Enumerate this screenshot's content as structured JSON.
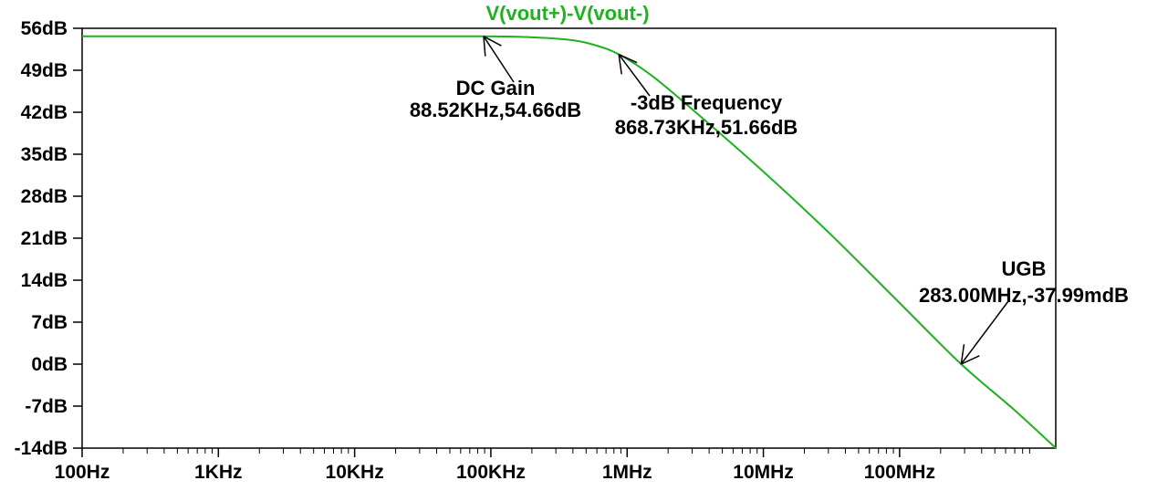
{
  "chart_data": {
    "type": "line",
    "title": "V(vout+)-V(vout-)",
    "xlabel": "",
    "ylabel": "",
    "x_scale": "log",
    "xlim": [
      100,
      1400000000
    ],
    "ylim": [
      -14,
      56
    ],
    "x_ticks": [
      {
        "value": 100,
        "label": "100Hz"
      },
      {
        "value": 1000,
        "label": "1KHz"
      },
      {
        "value": 10000,
        "label": "10KHz"
      },
      {
        "value": 100000,
        "label": "100KHz"
      },
      {
        "value": 1000000,
        "label": "1MHz"
      },
      {
        "value": 10000000,
        "label": "10MHz"
      },
      {
        "value": 100000000,
        "label": "100MHz"
      }
    ],
    "y_ticks": [
      {
        "value": 56,
        "label": "56dB"
      },
      {
        "value": 49,
        "label": "49dB"
      },
      {
        "value": 42,
        "label": "42dB"
      },
      {
        "value": 35,
        "label": "35dB"
      },
      {
        "value": 28,
        "label": "28dB"
      },
      {
        "value": 21,
        "label": "21dB"
      },
      {
        "value": 14,
        "label": "14dB"
      },
      {
        "value": 7,
        "label": "7dB"
      },
      {
        "value": 0,
        "label": "0dB"
      },
      {
        "value": -7,
        "label": "-7dB"
      },
      {
        "value": -14,
        "label": "-14dB"
      }
    ],
    "grid": false,
    "series": [
      {
        "name": "V(vout+)-V(vout-)",
        "color": "#1fb11f",
        "x": [
          100,
          1000,
          10000,
          88520,
          200000,
          400000,
          600000,
          868730,
          1500000,
          3000000,
          10000000,
          30000000,
          100000000,
          283000000,
          700000000,
          1400000000
        ],
        "y": [
          54.66,
          54.66,
          54.66,
          54.66,
          54.5,
          54.0,
          53.1,
          51.66,
          48.2,
          42.5,
          32.1,
          22.0,
          10.2,
          0.0,
          -7.7,
          -14.0
        ]
      }
    ],
    "annotations": [
      {
        "x": 88520,
        "y": 54.66,
        "label": "DC Gain",
        "value": "88.52KHz,54.66dB"
      },
      {
        "x": 868730,
        "y": 51.66,
        "label": "-3dB Frequency",
        "value": "868.73KHz,51.66dB"
      },
      {
        "x": 283000000,
        "y": 0.0,
        "label": "UGB",
        "value": "283.00MHz,-37.99mdB"
      }
    ]
  }
}
